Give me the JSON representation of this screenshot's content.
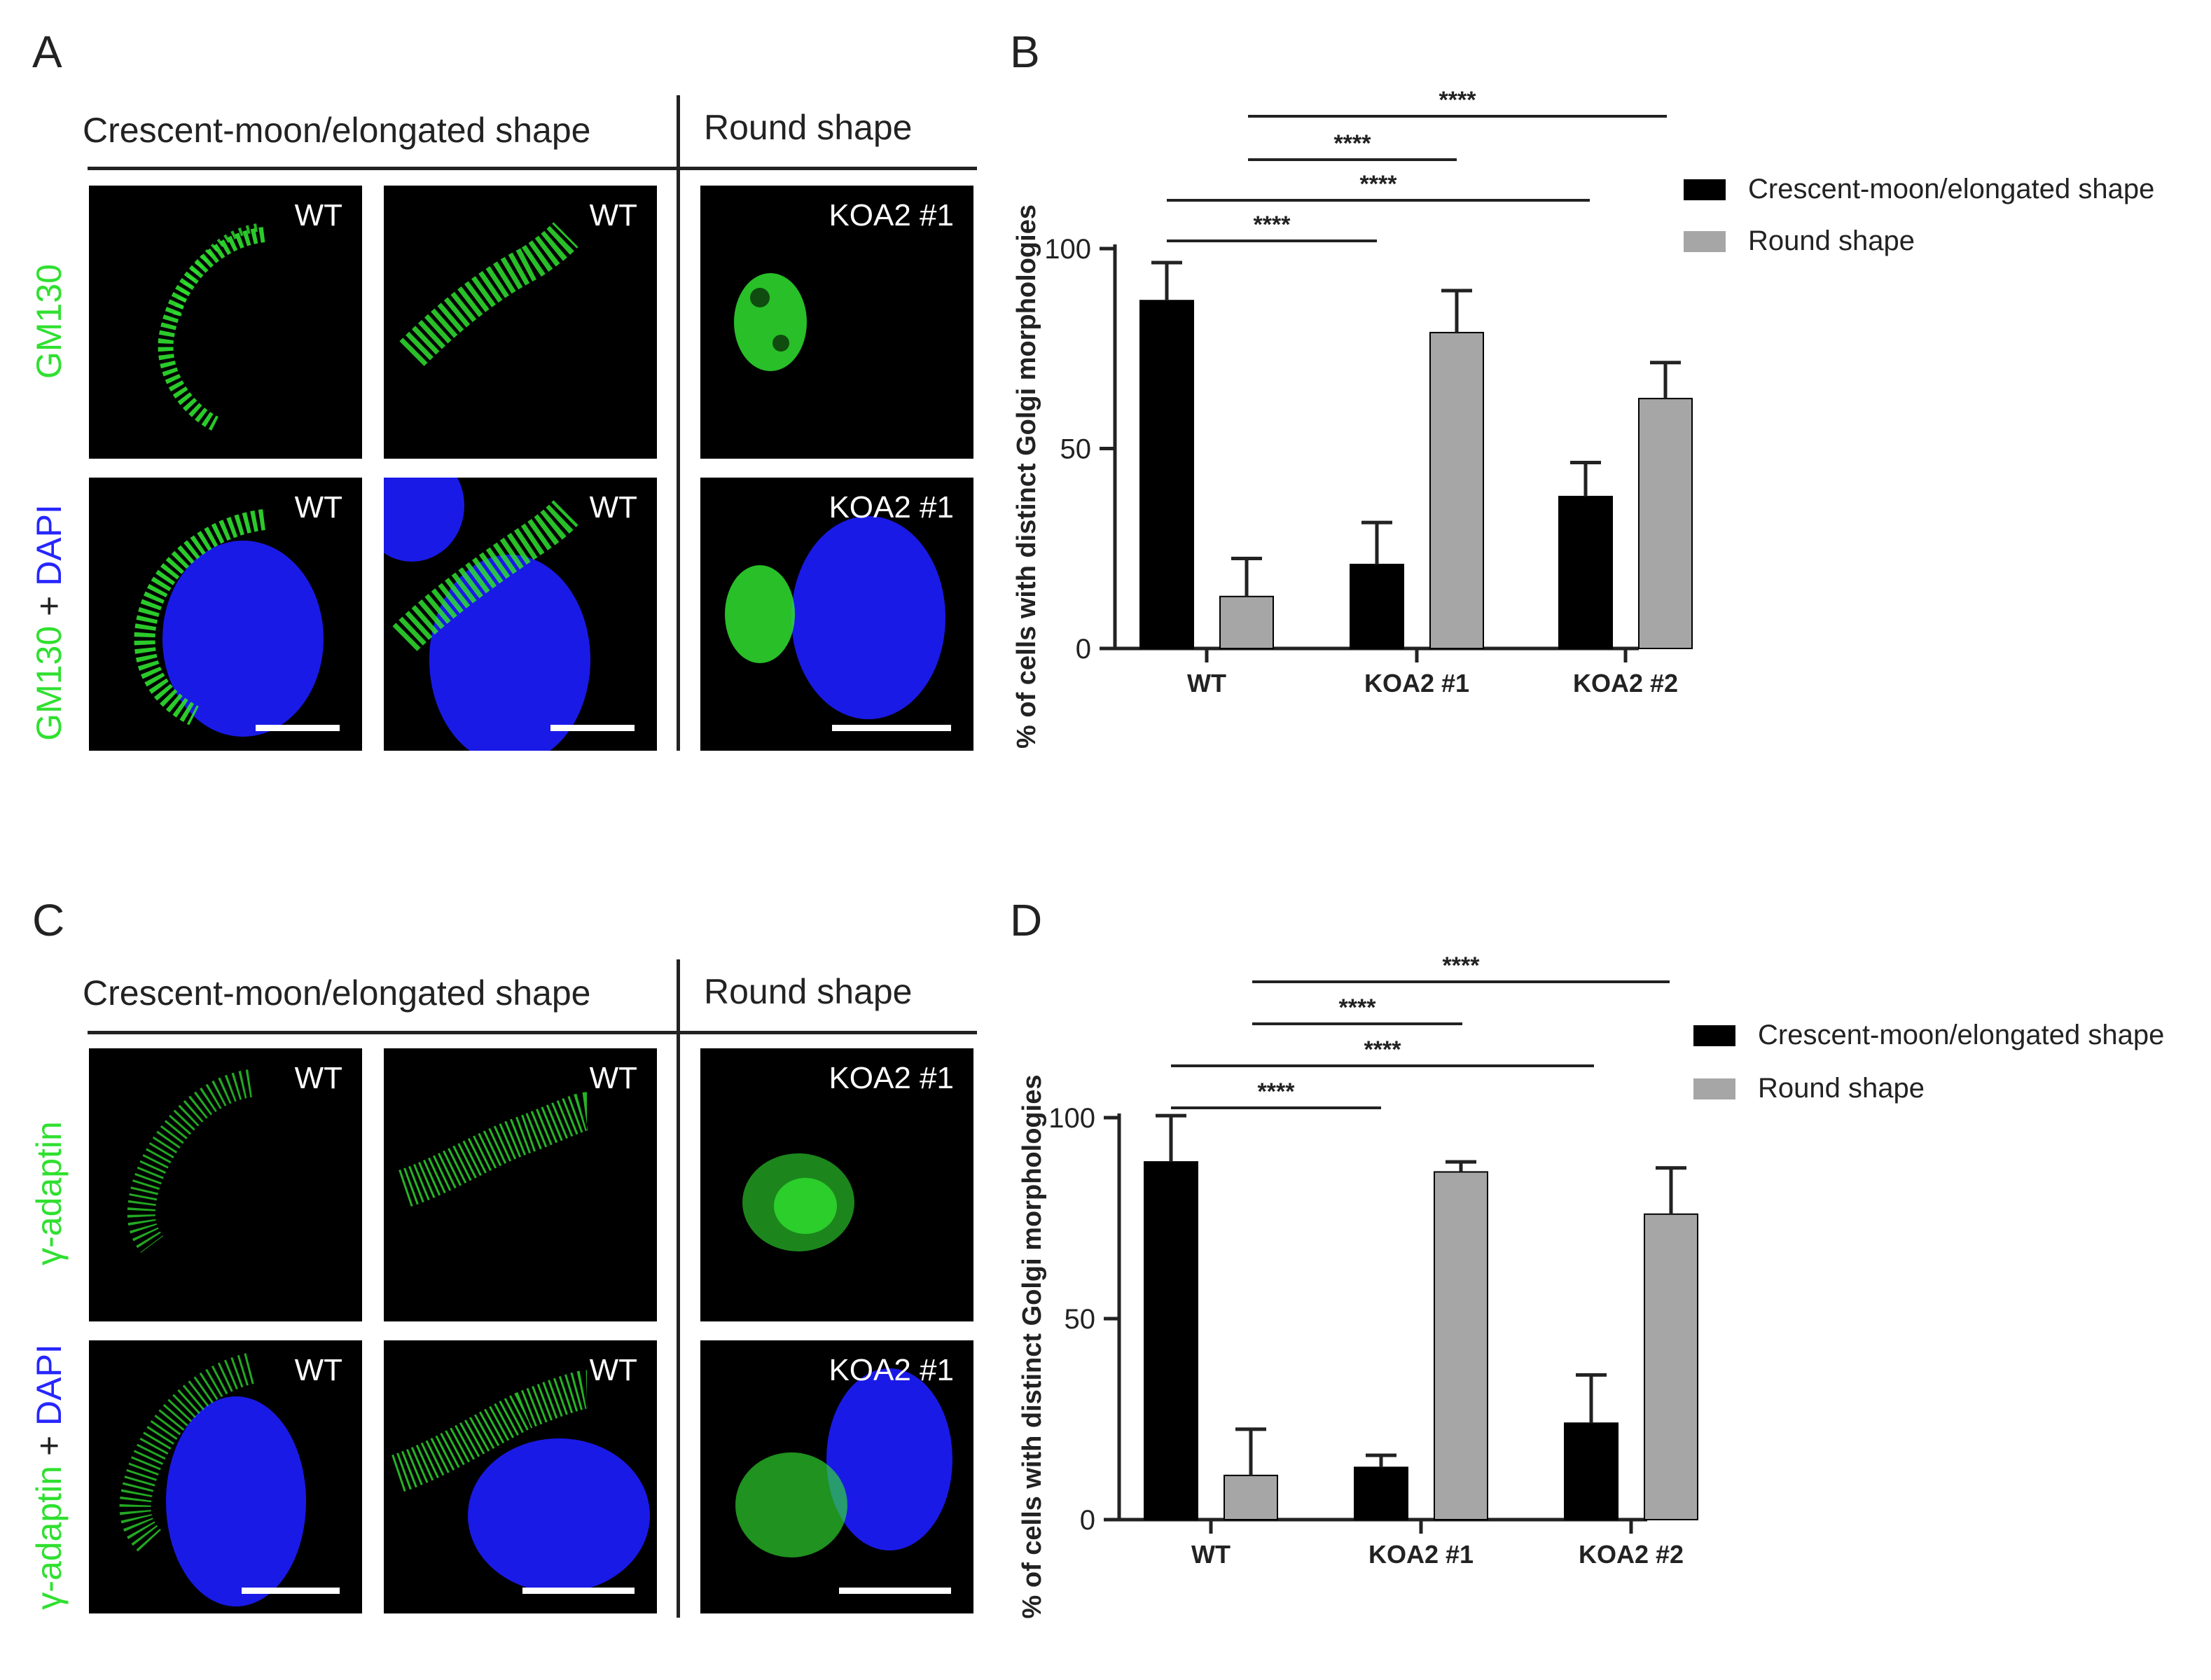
{
  "panels": {
    "A": {
      "letter": "A",
      "header_left": "Crescent-moon/elongated shape",
      "header_right": "Round shape",
      "row1_label": "GM130",
      "row2_label_part1": "GM130",
      "row2_label_plus": " + ",
      "row2_label_part2": "DAPI",
      "labels": [
        "WT",
        "WT",
        "KOA2 #1",
        "WT",
        "WT",
        "KOA2 #1"
      ]
    },
    "C": {
      "letter": "C",
      "header_left": "Crescent-moon/elongated shape",
      "header_right": "Round shape",
      "row1_label": "γ-adaptin",
      "row2_label_part1": "γ-adaptin",
      "row2_label_plus": " + ",
      "row2_label_part2": "DAPI",
      "labels": [
        "WT",
        "WT",
        "KOA2 #1",
        "WT",
        "WT",
        "KOA2 #1"
      ]
    },
    "B": {
      "letter": "B"
    },
    "D": {
      "letter": "D"
    }
  },
  "colors": {
    "series_black": "#000000",
    "series_gray": "#a6a6a6",
    "green_stain": "#2fe02f",
    "blue_stain": "#2626ff"
  },
  "chart_data": [
    {
      "type": "bar",
      "panel": "B",
      "ylabel": "% of cells with distinct Golgi morphologies",
      "xlabel": "",
      "ylim": [
        0,
        100
      ],
      "yticks": [
        "0",
        "50",
        "100"
      ],
      "categories": [
        "WT",
        "KOA2 #1",
        "KOA2 #2"
      ],
      "series": [
        {
          "name": "Crescent-moon/elongated shape",
          "color": "#000000",
          "values": [
            87,
            21,
            38
          ],
          "errors": [
            9.5,
            10.5,
            8.5
          ]
        },
        {
          "name": "Round shape",
          "color": "#a6a6a6",
          "values": [
            13,
            79,
            62.5
          ],
          "errors": [
            9.5,
            10.5,
            9
          ]
        }
      ],
      "significance": [
        {
          "from": "WT",
          "to": "KOA2 #2 Round shape",
          "label": "****"
        },
        {
          "from": "WT",
          "to": "KOA2 #1 Round shape",
          "label": "****"
        },
        {
          "from": "WT",
          "to": "KOA2 #2",
          "label": "****"
        },
        {
          "from": "WT",
          "to": "KOA2 #1",
          "label": "****"
        }
      ],
      "legend_position": "right"
    },
    {
      "type": "bar",
      "panel": "D",
      "ylabel": "% of cells with distinct Golgi morphologies",
      "xlabel": "",
      "ylim": [
        0,
        100
      ],
      "yticks": [
        "0",
        "50",
        "100"
      ],
      "categories": [
        "WT",
        "KOA2 #1",
        "KOA2 #2"
      ],
      "series": [
        {
          "name": "Crescent-moon/elongated shape",
          "color": "#000000",
          "values": [
            89,
            13,
            24
          ],
          "errors": [
            11.5,
            3,
            12
          ]
        },
        {
          "name": "Round shape",
          "color": "#a6a6a6",
          "values": [
            11,
            86.5,
            76
          ],
          "errors": [
            11.5,
            2.5,
            11.5
          ]
        }
      ],
      "significance": [
        {
          "from": "WT",
          "to": "KOA2 #2 Round shape",
          "label": "****"
        },
        {
          "from": "WT",
          "to": "KOA2 #1 Round shape",
          "label": "****"
        },
        {
          "from": "WT",
          "to": "KOA2 #2",
          "label": "****"
        },
        {
          "from": "WT",
          "to": "KOA2 #1",
          "label": "****"
        }
      ],
      "legend_position": "right"
    }
  ]
}
